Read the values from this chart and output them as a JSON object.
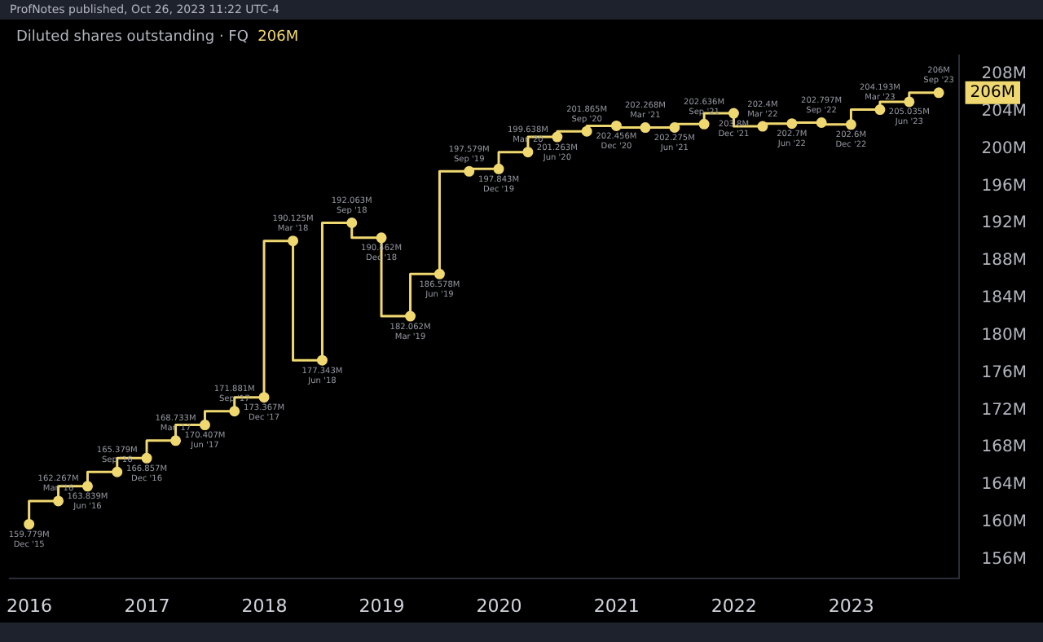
{
  "chart_data": {
    "type": "step",
    "title": "Diluted shares outstanding · FQ",
    "subtitle": "206M",
    "x": [
      "2015-12-31",
      "2016-03-31",
      "2016-06-30",
      "2016-09-30",
      "2016-12-31",
      "2017-03-31",
      "2017-06-30",
      "2017-09-30",
      "2017-12-31",
      "2018-03-31",
      "2018-06-30",
      "2018-09-30",
      "2018-12-31",
      "2019-03-31",
      "2019-06-30",
      "2019-09-30",
      "2019-12-31",
      "2020-03-31",
      "2020-06-30",
      "2020-09-30",
      "2020-12-31",
      "2021-03-31",
      "2021-06-30",
      "2021-09-30",
      "2021-12-31",
      "2022-03-31",
      "2022-06-30",
      "2022-09-30",
      "2022-12-31",
      "2023-03-31",
      "2023-06-30",
      "2023-09-30"
    ],
    "series": [
      {
        "color": "#f0d870",
        "values": [
          159.779,
          162.267,
          163.839,
          165.379,
          166.857,
          168.733,
          170.407,
          171.881,
          173.367,
          190.125,
          177.343,
          192.063,
          190.462,
          182.062,
          186.578,
          197.579,
          197.843,
          199.638,
          201.263,
          201.865,
          202.456,
          202.268,
          202.275,
          202.636,
          203.8,
          202.4,
          202.7,
          202.797,
          202.6,
          204.193,
          205.035,
          206
        ],
        "value_labels": [
          "159.779M",
          "162.267M",
          "163.839M",
          "165.379M",
          "166.857M",
          "168.733M",
          "170.407M",
          "171.881M",
          "173.367M",
          "190.125M",
          "177.343M",
          "192.063M",
          "190.462M",
          "182.062M",
          "186.578M",
          "197.579M",
          "197.843M",
          "199.638M",
          "201.263M",
          "201.865M",
          "202.456M",
          "202.268M",
          "202.275M",
          "202.636M",
          "203.8M",
          "202.4M",
          "202.7M",
          "202.797M",
          "202.6M",
          "204.193M",
          "205.035M",
          "206M"
        ]
      }
    ],
    "xlim": [
      "2015-11-01",
      "2023-12-01"
    ],
    "xticks": [
      "2016",
      "2017",
      "2018",
      "2019",
      "2020",
      "2021",
      "2022",
      "2023"
    ],
    "ylim": [
      154,
      210
    ],
    "yticks": [
      {
        "value": 156,
        "label": "156M"
      },
      {
        "value": 160,
        "label": "160M"
      },
      {
        "value": 164,
        "label": "164M"
      },
      {
        "value": 168,
        "label": "168M"
      },
      {
        "value": 172,
        "label": "172M"
      },
      {
        "value": 176,
        "label": "176M"
      },
      {
        "value": 180,
        "label": "180M"
      },
      {
        "value": 184,
        "label": "184M"
      },
      {
        "value": 188,
        "label": "188M"
      },
      {
        "value": 192,
        "label": "192M"
      },
      {
        "value": 196,
        "label": "196M"
      },
      {
        "value": 200,
        "label": "200M"
      },
      {
        "value": 204,
        "label": "204M"
      },
      {
        "value": 208,
        "label": "208M"
      }
    ],
    "annotations": [
      "ProfNotes published, Oct 26, 2023 11:22 UTC-4",
      "206M",
      {
        "text": "Dec '15",
        "x": "2015-12-31",
        "y": 159.779
      },
      {
        "text": "Mar '16",
        "x": "2016-03-31",
        "y": 162.267
      },
      {
        "text": "Jun '16",
        "x": "2016-06-30",
        "y": 163.839
      },
      {
        "text": "Sep '16",
        "x": "2016-09-30",
        "y": 165.379
      },
      {
        "text": "Dec '16",
        "x": "2016-12-31",
        "y": 166.857
      },
      {
        "text": "Mar '17",
        "x": "2017-03-31",
        "y": 168.733
      },
      {
        "text": "Jun '17",
        "x": "2017-06-30",
        "y": 170.407
      },
      {
        "text": "Sep '17",
        "x": "2017-09-30",
        "y": 171.881
      },
      {
        "text": "Dec '17",
        "x": "2017-12-31",
        "y": 173.367
      },
      {
        "text": "Mar '18",
        "x": "2018-03-31",
        "y": 190.125
      },
      {
        "text": "Jun '18",
        "x": "2018-06-30",
        "y": 177.343
      },
      {
        "text": "Sep '18",
        "x": "2018-09-30",
        "y": 192.063
      },
      {
        "text": "Dec '18",
        "x": "2018-12-31",
        "y": 190.462
      },
      {
        "text": "Mar '19",
        "x": "2019-03-31",
        "y": 182.062
      },
      {
        "text": "Jun '19",
        "x": "2019-06-30",
        "y": 186.578
      },
      {
        "text": "Sep '19",
        "x": "2019-09-30",
        "y": 197.579
      },
      {
        "text": "Dec '19",
        "x": "2019-12-31",
        "y": 197.843
      },
      {
        "text": "Mar '20",
        "x": "2020-03-31",
        "y": 199.638
      },
      {
        "text": "Jun '20",
        "x": "2020-06-30",
        "y": 201.263
      },
      {
        "text": "Sep '20",
        "x": "2020-09-30",
        "y": 201.865
      },
      {
        "text": "Dec '20",
        "x": "2020-12-31",
        "y": 202.456
      },
      {
        "text": "Mar '21",
        "x": "2021-03-31",
        "y": 202.268
      },
      {
        "text": "Jun '21",
        "x": "2021-06-30",
        "y": 202.275
      },
      {
        "text": "Sep '21",
        "x": "2021-09-30",
        "y": 202.636
      },
      {
        "text": "Dec '21",
        "x": "2021-12-31",
        "y": 203.8
      },
      {
        "text": "Mar '22",
        "x": "2022-03-31",
        "y": 202.4
      },
      {
        "text": "Jun '22",
        "x": "2022-06-30",
        "y": 202.7
      },
      {
        "text": "Sep '22",
        "x": "2022-09-30",
        "y": 202.797
      },
      {
        "text": "Dec '22",
        "x": "2022-12-31",
        "y": 202.6
      },
      {
        "text": "Mar '23",
        "x": "2023-03-31",
        "y": 204.193
      },
      {
        "text": "Jun '23",
        "x": "2023-06-30",
        "y": 205.035
      },
      {
        "text": "Sep '23",
        "x": "2023-09-30",
        "y": 206
      }
    ],
    "marker": "circle",
    "line_style": "solid",
    "grid": false,
    "legend": false
  }
}
